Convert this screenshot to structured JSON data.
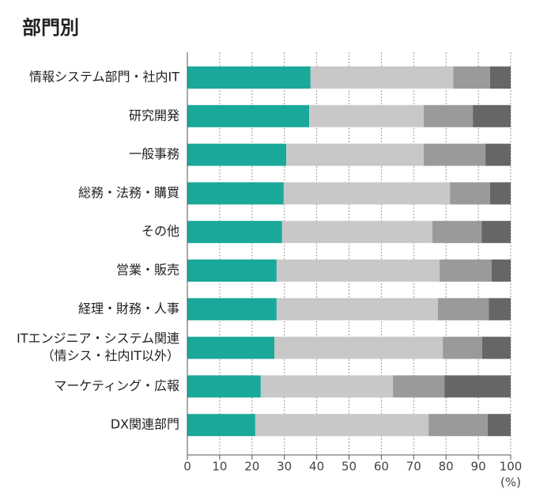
{
  "chart_data": {
    "type": "stacked_bar_horizontal",
    "title": "部門別",
    "categories": [
      "情報システム部門・社内IT",
      "研究開発",
      "一般事務",
      "総務・法務・購買",
      "その他",
      "営業・販売",
      "経理・財務・人事",
      [
        "ITエンジニア・システム関連",
        "（情シス・社内IT以外）"
      ],
      "マーケティング・広報",
      "DX関連部門"
    ],
    "series": [
      {
        "color": "#1aa89a",
        "values": [
          38.1,
          37.7,
          30.6,
          29.8,
          29.3,
          27.6,
          27.6,
          26.9,
          22.7,
          21.0
        ]
      },
      {
        "color": "#c8c8c8",
        "values": [
          44.1,
          35.4,
          42.5,
          51.4,
          46.5,
          50.4,
          49.9,
          52.1,
          40.9,
          53.6
        ]
      },
      {
        "color": "#9a9a9a",
        "values": [
          11.4,
          15.2,
          19.1,
          12.4,
          15.2,
          16.1,
          15.7,
          12.2,
          15.9,
          18.3
        ]
      },
      {
        "color": "#666666",
        "values": [
          6.4,
          11.7,
          7.8,
          6.4,
          9.0,
          5.9,
          6.8,
          8.8,
          20.5,
          7.1
        ]
      }
    ],
    "xlim": [
      0,
      100
    ],
    "xticks": [
      0,
      10,
      20,
      30,
      40,
      50,
      60,
      70,
      80,
      90,
      100
    ],
    "unit_label": "(%)",
    "grid": true
  }
}
